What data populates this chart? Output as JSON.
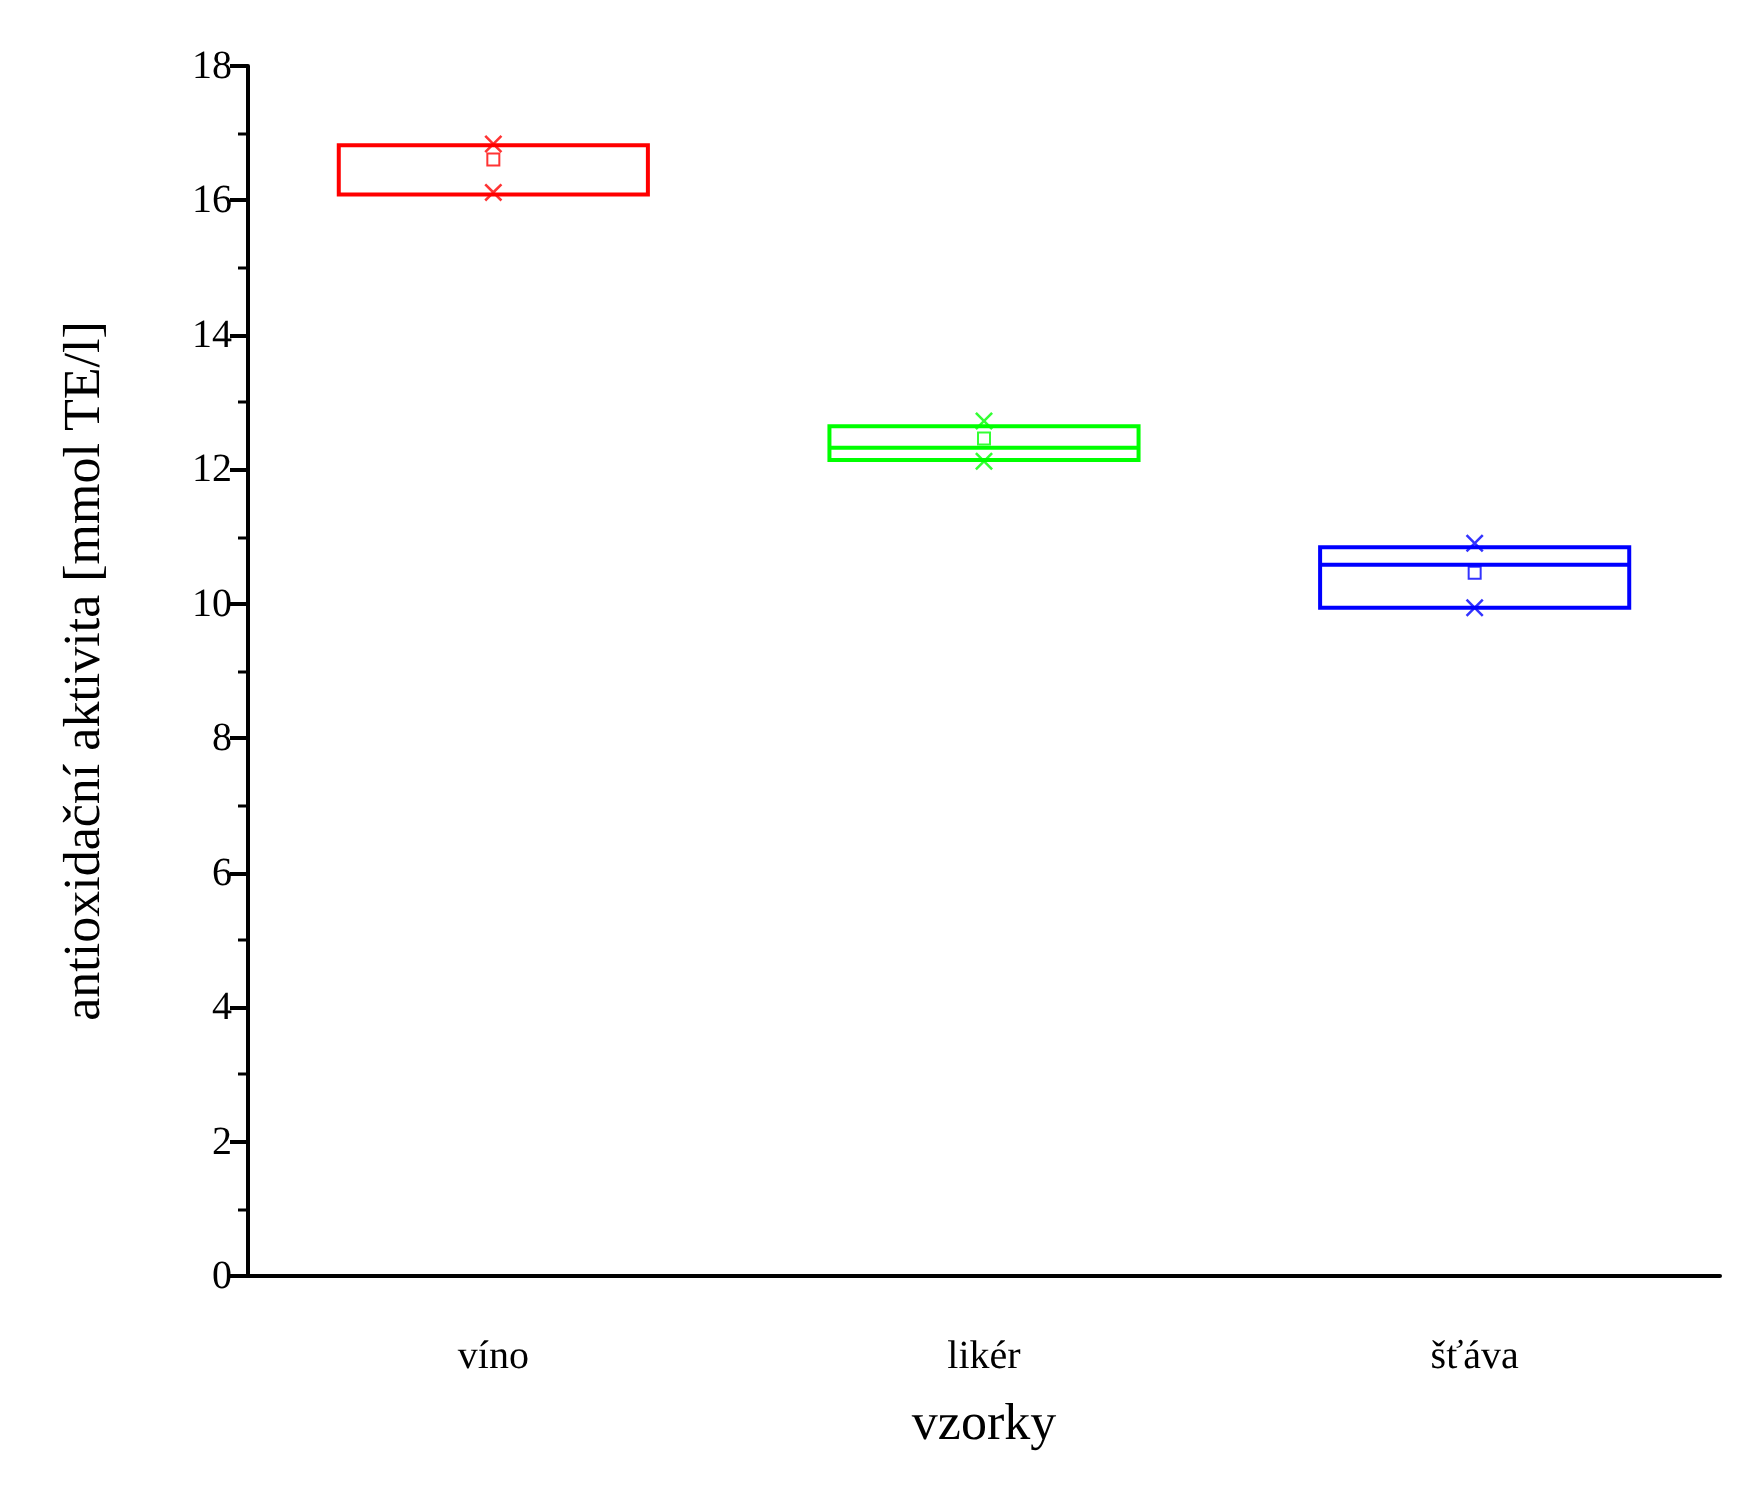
{
  "chart_data": {
    "type": "box",
    "xlabel": "vzorky",
    "ylabel": "antioxidační aktivita [mmol TE/l]",
    "categories": [
      "víno",
      "likér",
      "šťáva"
    ],
    "colors": [
      "#ff0000",
      "#00ff00",
      "#0000ff"
    ],
    "boxes": [
      {
        "low": 16.09,
        "q1": 16.09,
        "median": 16.82,
        "q3": 16.82,
        "high": 16.82,
        "mean": 16.61
      },
      {
        "low": 12.14,
        "q1": 12.14,
        "median": 12.32,
        "q3": 12.64,
        "high": 12.64,
        "mean": 12.46
      },
      {
        "low": 9.94,
        "q1": 9.94,
        "median": 10.58,
        "q3": 10.84,
        "high": 10.84,
        "mean": 10.46
      }
    ],
    "series": [
      {
        "type": "scatter",
        "marker": "cross",
        "x": [
          "víno",
          "víno",
          "likér",
          "likér",
          "šťáva",
          "šťáva"
        ],
        "values": [
          16.12,
          16.84,
          12.12,
          12.72,
          9.94,
          10.9
        ],
        "colors": [
          "#ff0000",
          "#ff0000",
          "#00ff00",
          "#00ff00",
          "#0000ff",
          "#0000ff"
        ]
      }
    ],
    "ylim": [
      0,
      18
    ],
    "yticks": [
      0,
      2,
      4,
      6,
      8,
      10,
      12,
      14,
      16,
      18
    ],
    "grid": false
  }
}
